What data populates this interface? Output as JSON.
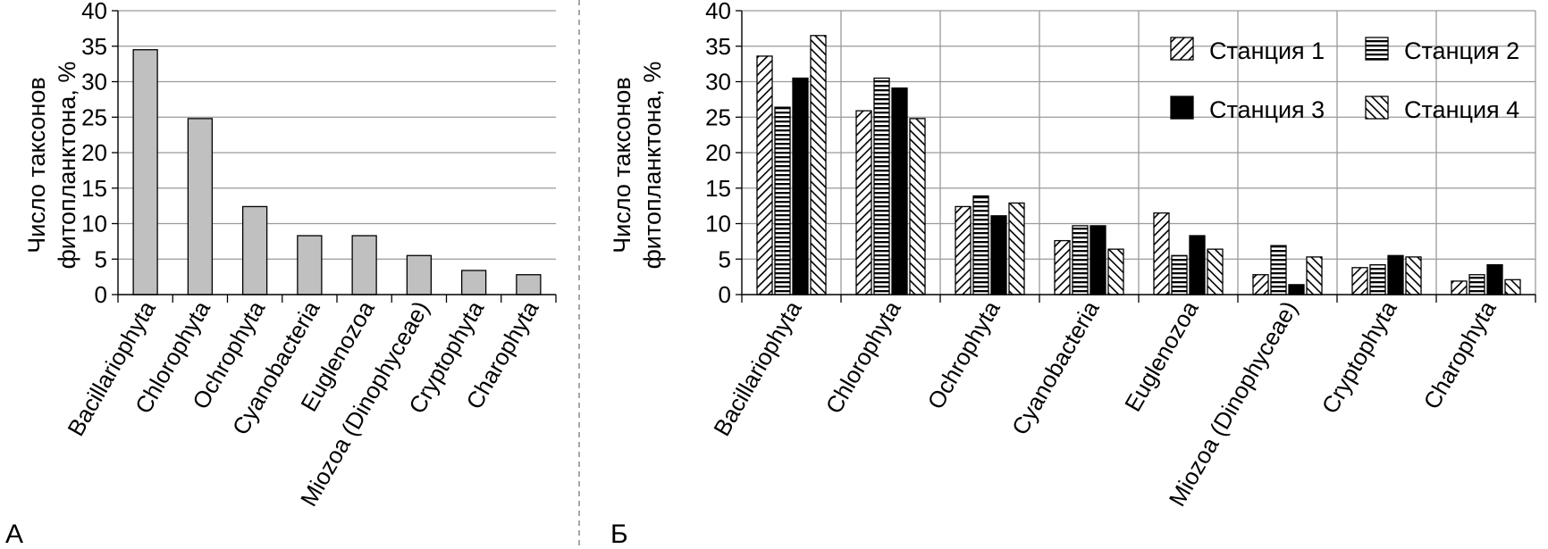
{
  "panels": {
    "a": {
      "letter": "А"
    },
    "b": {
      "letter": "Б"
    }
  },
  "chart_data": [
    {
      "type": "bar",
      "categories": [
        "Bacillariophyta",
        "Chlorophyta",
        "Ochrophyta",
        "Cyanobacteria",
        "Euglenozoa",
        "Miozoa (Dinophyceae)",
        "Cryptophyta",
        "Charophyta"
      ],
      "values": [
        34.5,
        24.8,
        12.4,
        8.3,
        8.3,
        5.5,
        3.4,
        2.8
      ],
      "ylabel_line1": "Число  таксонов",
      "ylabel_line2": "фитопланктона,  %",
      "ylim": [
        0,
        40
      ],
      "yticks": [
        0,
        5,
        10,
        15,
        20,
        25,
        30,
        35,
        40
      ],
      "grid": "horizontal",
      "bar_color": "#c0c0c0"
    },
    {
      "type": "bar",
      "categories": [
        "Bacillariophyta",
        "Chlorophyta",
        "Ochrophyta",
        "Cyanobacteria",
        "Euglenozoa",
        "Miozoa (Dinophyceae)",
        "Cryptophyta",
        "Charophyta"
      ],
      "series": [
        {
          "name": "Станция 1",
          "pattern": "diagonal-up",
          "values": [
            33.6,
            25.9,
            12.4,
            7.6,
            11.5,
            2.8,
            3.8,
            1.9
          ]
        },
        {
          "name": "Станция 2",
          "pattern": "horizontal",
          "values": [
            26.4,
            30.5,
            13.9,
            9.7,
            5.5,
            6.9,
            4.2,
            2.8
          ]
        },
        {
          "name": "Станция 3",
          "pattern": "solid",
          "values": [
            30.5,
            29.1,
            11.1,
            9.7,
            8.3,
            1.4,
            5.5,
            4.2
          ]
        },
        {
          "name": "Станция 4",
          "pattern": "diagonal-down",
          "values": [
            36.5,
            24.8,
            12.9,
            6.4,
            6.4,
            5.3,
            5.3,
            2.1
          ]
        }
      ],
      "ylabel_line1": "Число  таксонов",
      "ylabel_line2": "фитопланктона,  %",
      "ylim": [
        0,
        40
      ],
      "yticks": [
        0,
        5,
        10,
        15,
        20,
        25,
        30,
        35,
        40
      ],
      "grid": "both",
      "legend": "top-right"
    }
  ]
}
